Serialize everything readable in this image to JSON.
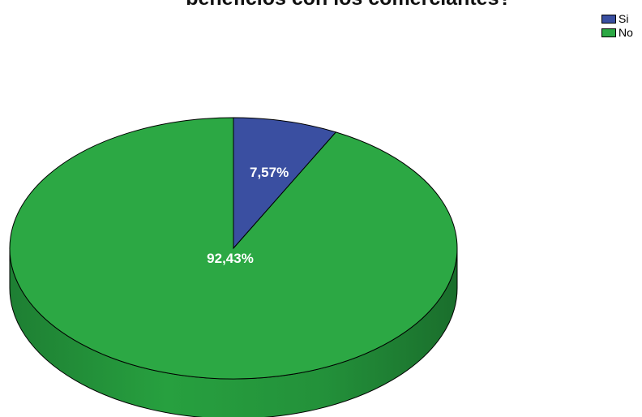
{
  "chart_data": {
    "type": "pie",
    "title": "beneficios con los comerciantes?",
    "legend_position": "top-right",
    "slices": [
      {
        "label": "Si",
        "value": 7.57,
        "value_label": "7,57%",
        "color": "#3a4fa1"
      },
      {
        "label": "No",
        "value": 92.43,
        "value_label": "92,43%",
        "color": "#2ca844"
      }
    ]
  }
}
